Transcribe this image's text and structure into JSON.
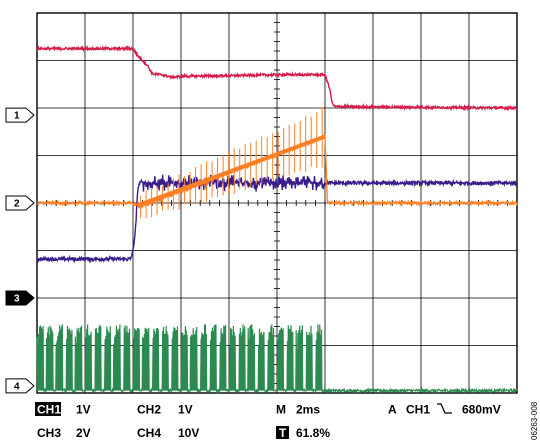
{
  "chart_data": {
    "type": "line",
    "title": "",
    "xlabel": "",
    "ylabel": "",
    "grid": true,
    "x_range": [
      0,
      10
    ],
    "y_range": [
      -4,
      4
    ],
    "channel_markers": [
      {
        "label": "1",
        "y": 1.85,
        "style": "outline"
      },
      {
        "label": "2",
        "y": 0.0,
        "style": "outline"
      },
      {
        "label": "3",
        "y": -2.0,
        "style": "filled"
      },
      {
        "label": "4",
        "y": -3.85,
        "style": "outline"
      }
    ],
    "series": [
      {
        "id": "ch1",
        "color": "#d61c48",
        "noise": 0.025,
        "x": [
          0,
          2.0,
          2.1,
          2.3,
          2.4,
          2.6,
          2.8,
          3.1,
          4.0,
          5.0,
          6.0,
          6.1,
          6.15,
          6.2,
          10.0
        ],
        "y": [
          3.25,
          3.25,
          3.1,
          2.9,
          2.72,
          2.7,
          2.65,
          2.67,
          2.68,
          2.7,
          2.7,
          2.4,
          2.1,
          2.03,
          2.0
        ]
      },
      {
        "id": "ch2",
        "color": "#ff7f24",
        "noise": 0.03,
        "x": [
          0,
          2.0,
          2.15,
          6.0,
          6.05,
          10.0
        ],
        "y": [
          0.0,
          0.0,
          -0.08,
          1.4,
          0.0,
          0.0
        ]
      },
      {
        "id": "ch3",
        "color": "#3b1c8c",
        "noise": 0.04,
        "x": [
          0,
          1.95,
          2.0,
          2.05,
          2.1,
          2.15,
          2.2,
          6.0,
          10.0
        ],
        "y": [
          -1.18,
          -1.18,
          -1.0,
          -0.6,
          0.3,
          0.45,
          0.42,
          0.42,
          0.42
        ]
      },
      {
        "id": "ch4",
        "color": "#2a8a4f",
        "noise": 0.03,
        "baseline": -3.95,
        "switching": {
          "start": 0.0,
          "end": 6.0,
          "bursts": 30,
          "low": -3.95,
          "high": -2.55
        }
      }
    ],
    "readouts": {
      "ch1": {
        "label": "CH1",
        "scale": "1V",
        "highlight": true
      },
      "ch2": {
        "label": "CH2",
        "scale": "1V"
      },
      "ch3": {
        "label": "CH3",
        "scale": "2V"
      },
      "ch4": {
        "label": "CH4",
        "scale": "10V"
      },
      "timebase": {
        "label": "M",
        "value": "2ms"
      },
      "trigger": {
        "label": "A",
        "channel": "CH1",
        "slope_icon": "falling-edge-icon",
        "level": "680mV"
      },
      "trigger_position": {
        "icon": "T",
        "value": "61.8%"
      }
    },
    "figure_id": "06263-008"
  }
}
